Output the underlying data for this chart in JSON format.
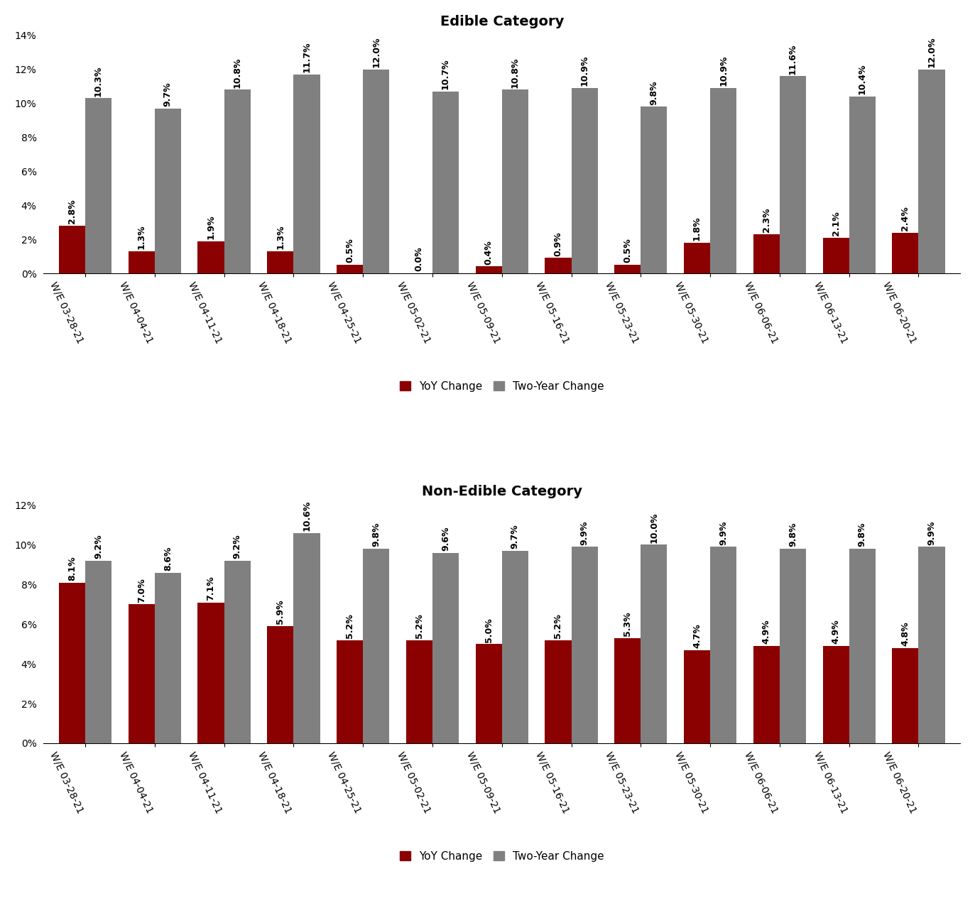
{
  "categories": [
    "W/E 03-28-21",
    "W/E 04-04-21",
    "W/E 04-11-21",
    "W/E 04-18-21",
    "W/E 04-25-21",
    "W/E 05-02-21",
    "W/E 05-09-21",
    "W/E 05-16-21",
    "W/E 05-23-21",
    "W/E 05-30-21",
    "W/E 06-06-21",
    "W/E 06-13-21",
    "W/E 06-20-21"
  ],
  "edible": {
    "title": "Edible Category",
    "yoy": [
      2.8,
      1.3,
      1.9,
      1.3,
      0.5,
      0.0,
      0.4,
      0.9,
      0.5,
      1.8,
      2.3,
      2.1,
      2.4
    ],
    "two_year": [
      10.3,
      9.7,
      10.8,
      11.7,
      12.0,
      10.7,
      10.8,
      10.9,
      9.8,
      10.9,
      11.6,
      10.4,
      12.0
    ],
    "ylim": [
      0,
      14
    ],
    "yticks": [
      0,
      2,
      4,
      6,
      8,
      10,
      12,
      14
    ]
  },
  "non_edible": {
    "title": "Non-Edible Category",
    "yoy": [
      8.1,
      7.0,
      7.1,
      5.9,
      5.2,
      5.2,
      5.0,
      5.2,
      5.3,
      4.7,
      4.9,
      4.9,
      4.8
    ],
    "two_year": [
      9.2,
      8.6,
      9.2,
      10.6,
      9.8,
      9.6,
      9.7,
      9.9,
      10.0,
      9.9,
      9.8,
      9.8,
      9.9
    ],
    "ylim": [
      0,
      12
    ],
    "yticks": [
      0,
      2,
      4,
      6,
      8,
      10,
      12
    ]
  },
  "yoy_color": "#8B0000",
  "two_year_color": "#808080",
  "bar_width": 0.38,
  "label_fontsize": 9.0,
  "title_fontsize": 14,
  "tick_fontsize": 10,
  "legend_fontsize": 11,
  "xtick_rotation": -65
}
